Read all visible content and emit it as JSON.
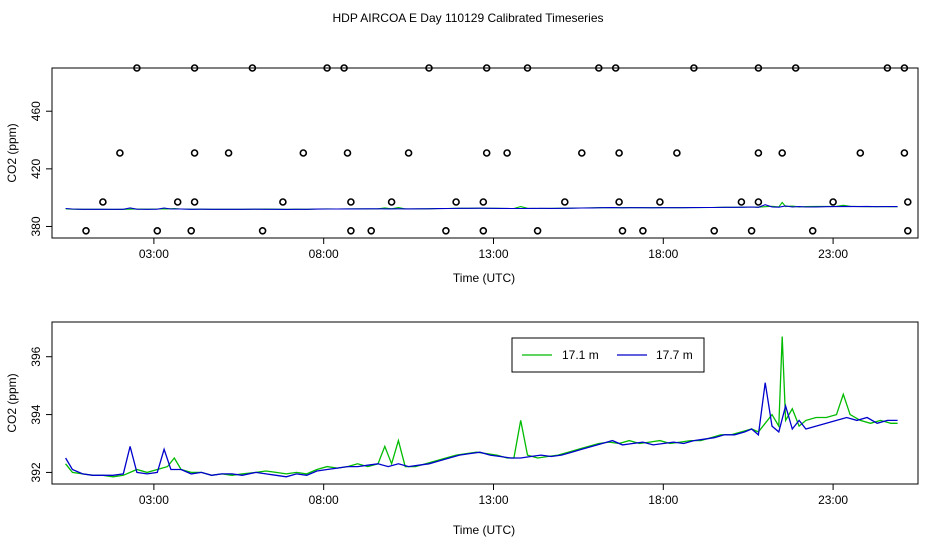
{
  "title": "HDP AIRCOA E  Day 110129  Calibrated Timeseries",
  "colors": {
    "green": "#00bb00",
    "blue": "#0000cc",
    "axis": "#000000"
  },
  "chart_data": [
    {
      "type": "scatter",
      "xlabel": "Time (UTC)",
      "ylabel": "CO2 (ppm)",
      "x_unit": "hours UTC",
      "xlim": [
        0,
        25.5
      ],
      "ylim": [
        372,
        490
      ],
      "x_ticks": [
        3,
        8,
        13,
        18,
        23
      ],
      "x_tick_labels": [
        "03:00",
        "08:00",
        "13:00",
        "18:00",
        "23:00"
      ],
      "y_ticks": [
        380,
        420,
        460
      ],
      "y_tick_labels": [
        "380",
        "420",
        "460"
      ],
      "calibration_points": [
        [
          1.0,
          377
        ],
        [
          3.1,
          377
        ],
        [
          4.1,
          377
        ],
        [
          6.2,
          377
        ],
        [
          8.8,
          377
        ],
        [
          9.4,
          377
        ],
        [
          11.6,
          377
        ],
        [
          12.7,
          377
        ],
        [
          14.3,
          377
        ],
        [
          16.8,
          377
        ],
        [
          17.4,
          377
        ],
        [
          19.5,
          377
        ],
        [
          20.6,
          377
        ],
        [
          22.4,
          377
        ],
        [
          25.2,
          377
        ],
        [
          1.5,
          397
        ],
        [
          3.7,
          397
        ],
        [
          4.2,
          397
        ],
        [
          6.8,
          397
        ],
        [
          8.8,
          397
        ],
        [
          10.0,
          397
        ],
        [
          11.9,
          397
        ],
        [
          12.7,
          397
        ],
        [
          15.1,
          397
        ],
        [
          16.7,
          397
        ],
        [
          17.9,
          397
        ],
        [
          20.3,
          397
        ],
        [
          20.8,
          397
        ],
        [
          23.0,
          397
        ],
        [
          25.2,
          397
        ],
        [
          2.0,
          431
        ],
        [
          4.2,
          431
        ],
        [
          5.2,
          431
        ],
        [
          7.4,
          431
        ],
        [
          8.7,
          431
        ],
        [
          10.5,
          431
        ],
        [
          12.8,
          431
        ],
        [
          13.4,
          431
        ],
        [
          15.6,
          431
        ],
        [
          16.7,
          431
        ],
        [
          18.4,
          431
        ],
        [
          20.8,
          431
        ],
        [
          21.5,
          431
        ],
        [
          23.8,
          431
        ],
        [
          25.1,
          431
        ],
        [
          2.5,
          490
        ],
        [
          4.2,
          490
        ],
        [
          5.9,
          490
        ],
        [
          8.1,
          490
        ],
        [
          8.6,
          490
        ],
        [
          11.1,
          490
        ],
        [
          12.8,
          490
        ],
        [
          14.0,
          490
        ],
        [
          16.1,
          490
        ],
        [
          16.6,
          490
        ],
        [
          18.9,
          490
        ],
        [
          20.8,
          490
        ],
        [
          21.9,
          490
        ],
        [
          24.6,
          490
        ],
        [
          25.1,
          490
        ]
      ],
      "series": [
        {
          "name": "17.1 m",
          "color": "#00bb00"
        },
        {
          "name": "17.7 m",
          "color": "#0000cc"
        }
      ]
    },
    {
      "type": "line",
      "xlabel": "Time (UTC)",
      "ylabel": "CO2 (ppm)",
      "x_unit": "hours UTC",
      "xlim": [
        0,
        25.5
      ],
      "ylim": [
        391.6,
        397.2
      ],
      "x_ticks": [
        3,
        8,
        13,
        18,
        23
      ],
      "x_tick_labels": [
        "03:00",
        "08:00",
        "13:00",
        "18:00",
        "23:00"
      ],
      "y_ticks": [
        392,
        394,
        396
      ],
      "y_tick_labels": [
        "392",
        "394",
        "396"
      ],
      "legend": {
        "position": "top-right"
      },
      "series": [
        {
          "name": "17.1 m",
          "color": "#00bb00",
          "points": [
            [
              0.4,
              392.3
            ],
            [
              0.6,
              392.0
            ],
            [
              0.9,
              391.95
            ],
            [
              1.2,
              391.9
            ],
            [
              1.5,
              391.9
            ],
            [
              1.8,
              391.85
            ],
            [
              2.1,
              391.9
            ],
            [
              2.3,
              392.0
            ],
            [
              2.5,
              392.1
            ],
            [
              2.8,
              392.0
            ],
            [
              3.1,
              392.1
            ],
            [
              3.4,
              392.2
            ],
            [
              3.6,
              392.5
            ],
            [
              3.8,
              392.1
            ],
            [
              4.1,
              392.0
            ],
            [
              4.4,
              392.0
            ],
            [
              4.7,
              391.9
            ],
            [
              5.0,
              391.95
            ],
            [
              5.3,
              391.9
            ],
            [
              5.6,
              391.95
            ],
            [
              6.0,
              392.0
            ],
            [
              6.3,
              392.05
            ],
            [
              6.6,
              392.0
            ],
            [
              6.9,
              391.95
            ],
            [
              7.2,
              392.0
            ],
            [
              7.5,
              391.95
            ],
            [
              7.8,
              392.1
            ],
            [
              8.1,
              392.2
            ],
            [
              8.4,
              392.15
            ],
            [
              8.7,
              392.2
            ],
            [
              9.0,
              392.3
            ],
            [
              9.3,
              392.2
            ],
            [
              9.6,
              392.3
            ],
            [
              9.8,
              392.9
            ],
            [
              10.0,
              392.3
            ],
            [
              10.2,
              393.1
            ],
            [
              10.4,
              392.2
            ],
            [
              10.7,
              392.2
            ],
            [
              11.0,
              392.3
            ],
            [
              11.3,
              392.4
            ],
            [
              11.6,
              392.5
            ],
            [
              11.9,
              392.6
            ],
            [
              12.2,
              392.65
            ],
            [
              12.5,
              392.7
            ],
            [
              12.8,
              392.65
            ],
            [
              13.1,
              392.6
            ],
            [
              13.4,
              392.5
            ],
            [
              13.6,
              392.5
            ],
            [
              13.8,
              393.8
            ],
            [
              14.0,
              392.6
            ],
            [
              14.3,
              392.5
            ],
            [
              14.6,
              392.55
            ],
            [
              14.9,
              392.6
            ],
            [
              15.2,
              392.7
            ],
            [
              15.5,
              392.8
            ],
            [
              15.8,
              392.9
            ],
            [
              16.1,
              393.0
            ],
            [
              16.4,
              393.05
            ],
            [
              16.7,
              393.0
            ],
            [
              17.0,
              393.1
            ],
            [
              17.3,
              393.0
            ],
            [
              17.6,
              393.05
            ],
            [
              17.9,
              393.1
            ],
            [
              18.2,
              393.0
            ],
            [
              18.5,
              393.05
            ],
            [
              18.8,
              393.1
            ],
            [
              19.1,
              393.1
            ],
            [
              19.4,
              393.2
            ],
            [
              19.7,
              393.3
            ],
            [
              20.0,
              393.3
            ],
            [
              20.3,
              393.4
            ],
            [
              20.6,
              393.5
            ],
            [
              20.8,
              393.4
            ],
            [
              21.0,
              393.7
            ],
            [
              21.2,
              394.0
            ],
            [
              21.4,
              393.6
            ],
            [
              21.5,
              396.7
            ],
            [
              21.6,
              393.8
            ],
            [
              21.8,
              394.2
            ],
            [
              22.0,
              393.6
            ],
            [
              22.2,
              393.8
            ],
            [
              22.5,
              393.9
            ],
            [
              22.8,
              393.9
            ],
            [
              23.1,
              394.0
            ],
            [
              23.3,
              394.7
            ],
            [
              23.5,
              394.0
            ],
            [
              23.8,
              393.8
            ],
            [
              24.1,
              393.7
            ],
            [
              24.4,
              393.8
            ],
            [
              24.7,
              393.7
            ],
            [
              24.9,
              393.7
            ]
          ]
        },
        {
          "name": "17.7 m",
          "color": "#0000cc",
          "points": [
            [
              0.4,
              392.5
            ],
            [
              0.6,
              392.1
            ],
            [
              0.9,
              391.95
            ],
            [
              1.2,
              391.9
            ],
            [
              1.5,
              391.9
            ],
            [
              1.8,
              391.9
            ],
            [
              2.1,
              391.95
            ],
            [
              2.3,
              392.9
            ],
            [
              2.5,
              392.0
            ],
            [
              2.8,
              391.95
            ],
            [
              3.1,
              392.0
            ],
            [
              3.3,
              392.8
            ],
            [
              3.5,
              392.1
            ],
            [
              3.8,
              392.1
            ],
            [
              4.1,
              391.95
            ],
            [
              4.4,
              392.0
            ],
            [
              4.7,
              391.9
            ],
            [
              5.0,
              391.95
            ],
            [
              5.3,
              391.95
            ],
            [
              5.6,
              391.9
            ],
            [
              6.0,
              392.0
            ],
            [
              6.3,
              391.95
            ],
            [
              6.6,
              391.9
            ],
            [
              6.9,
              391.85
            ],
            [
              7.2,
              391.95
            ],
            [
              7.5,
              391.9
            ],
            [
              7.8,
              392.05
            ],
            [
              8.1,
              392.1
            ],
            [
              8.4,
              392.15
            ],
            [
              8.7,
              392.2
            ],
            [
              9.0,
              392.2
            ],
            [
              9.3,
              392.25
            ],
            [
              9.6,
              392.3
            ],
            [
              9.9,
              392.2
            ],
            [
              10.2,
              392.3
            ],
            [
              10.5,
              392.2
            ],
            [
              10.8,
              392.25
            ],
            [
              11.1,
              392.3
            ],
            [
              11.4,
              392.4
            ],
            [
              11.7,
              392.5
            ],
            [
              12.0,
              392.6
            ],
            [
              12.3,
              392.65
            ],
            [
              12.6,
              392.7
            ],
            [
              12.9,
              392.6
            ],
            [
              13.2,
              392.55
            ],
            [
              13.5,
              392.5
            ],
            [
              13.8,
              392.5
            ],
            [
              14.1,
              392.55
            ],
            [
              14.4,
              392.6
            ],
            [
              14.7,
              392.55
            ],
            [
              15.0,
              392.6
            ],
            [
              15.3,
              392.7
            ],
            [
              15.6,
              392.8
            ],
            [
              15.9,
              392.9
            ],
            [
              16.2,
              393.0
            ],
            [
              16.5,
              393.1
            ],
            [
              16.8,
              392.95
            ],
            [
              17.1,
              393.0
            ],
            [
              17.4,
              393.05
            ],
            [
              17.7,
              392.95
            ],
            [
              18.0,
              393.0
            ],
            [
              18.3,
              393.05
            ],
            [
              18.6,
              393.0
            ],
            [
              18.9,
              393.1
            ],
            [
              19.2,
              393.15
            ],
            [
              19.5,
              393.2
            ],
            [
              19.8,
              393.3
            ],
            [
              20.1,
              393.3
            ],
            [
              20.4,
              393.4
            ],
            [
              20.6,
              393.5
            ],
            [
              20.8,
              393.3
            ],
            [
              21.0,
              395.1
            ],
            [
              21.2,
              393.6
            ],
            [
              21.4,
              393.4
            ],
            [
              21.6,
              394.3
            ],
            [
              21.8,
              393.5
            ],
            [
              22.0,
              393.8
            ],
            [
              22.2,
              393.5
            ],
            [
              22.5,
              393.6
            ],
            [
              22.8,
              393.7
            ],
            [
              23.1,
              393.8
            ],
            [
              23.4,
              393.9
            ],
            [
              23.7,
              393.8
            ],
            [
              24.0,
              393.9
            ],
            [
              24.3,
              393.7
            ],
            [
              24.6,
              393.8
            ],
            [
              24.9,
              393.8
            ]
          ]
        }
      ]
    }
  ]
}
